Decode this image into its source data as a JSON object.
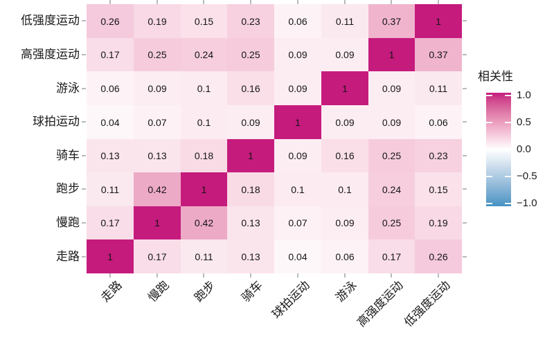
{
  "chart_data": {
    "type": "heatmap",
    "title": "",
    "legend": {
      "title": "相关性",
      "tick_labels": [
        "1.0",
        "0.5",
        "0.0",
        "−0.5",
        "−1.0"
      ],
      "tick_values": [
        1.0,
        0.5,
        0.0,
        -0.5,
        -1.0
      ],
      "position": "right"
    },
    "colorscale": {
      "high": "#C51B7D",
      "mid": "#FFFFFF",
      "low": "#4393C3",
      "domain": [
        -1,
        1
      ]
    },
    "x_categories": [
      "走路",
      "慢跑",
      "跑步",
      "骑车",
      "球拍运动",
      "游泳",
      "高强度运动",
      "低强度运动"
    ],
    "y_categories_top_to_bottom": [
      "低强度运动",
      "高强度运动",
      "游泳",
      "球拍运动",
      "骑车",
      "跑步",
      "慢跑",
      "走路"
    ],
    "values_rows_top_to_bottom": [
      [
        0.26,
        0.19,
        0.15,
        0.23,
        0.06,
        0.11,
        0.37,
        1
      ],
      [
        0.17,
        0.25,
        0.24,
        0.25,
        0.09,
        0.09,
        1,
        0.37
      ],
      [
        0.06,
        0.09,
        0.1,
        0.16,
        0.09,
        1,
        0.09,
        0.11
      ],
      [
        0.04,
        0.07,
        0.1,
        0.09,
        1,
        0.09,
        0.09,
        0.06
      ],
      [
        0.13,
        0.13,
        0.18,
        1,
        0.09,
        0.16,
        0.25,
        0.23
      ],
      [
        0.11,
        0.42,
        1,
        0.18,
        0.1,
        0.1,
        0.24,
        0.15
      ],
      [
        0.17,
        1,
        0.42,
        0.13,
        0.07,
        0.09,
        0.25,
        0.19
      ],
      [
        1,
        0.17,
        0.11,
        0.13,
        0.04,
        0.06,
        0.17,
        0.26
      ]
    ],
    "grid": false,
    "x_tick_angle": 45,
    "ticks_on_sides": [
      "top",
      "bottom",
      "left",
      "right"
    ]
  }
}
